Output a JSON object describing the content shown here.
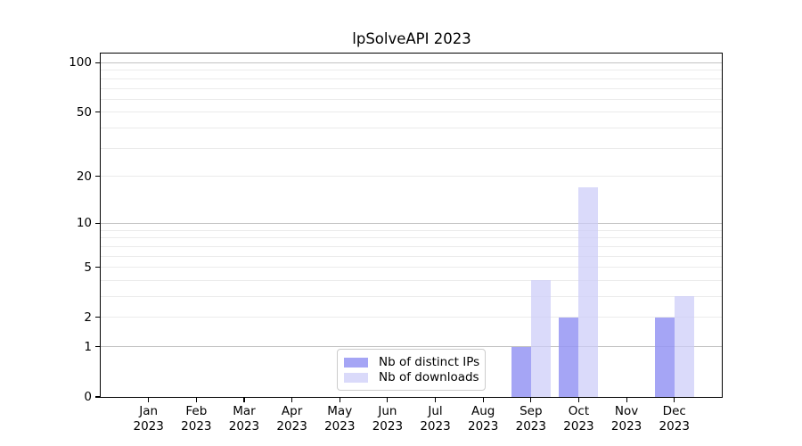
{
  "chart_data": {
    "type": "bar",
    "title": "lpSolveAPI 2023",
    "categories": [
      "Jan",
      "Feb",
      "Mar",
      "Apr",
      "May",
      "Jun",
      "Jul",
      "Aug",
      "Sep",
      "Oct",
      "Nov",
      "Dec"
    ],
    "category_sub_label": "2023",
    "series": [
      {
        "name": "Nb of distinct IPs",
        "color": "#9898f4",
        "alpha": 0.87,
        "values": [
          0,
          0,
          0,
          0,
          0,
          0,
          0,
          0,
          1,
          2,
          0,
          2
        ]
      },
      {
        "name": "Nb of downloads",
        "color": "#ccccf8",
        "alpha": 0.72,
        "values": [
          0,
          0,
          0,
          0,
          0,
          0,
          0,
          0,
          4,
          17,
          0,
          3
        ]
      }
    ],
    "y_axis": {
      "scale": "log1p",
      "tick_labels": [
        0,
        1,
        2,
        5,
        10,
        20,
        50,
        100
      ],
      "dark_gridlines": [
        1,
        10,
        100
      ],
      "light_gridlines": [
        2,
        3,
        4,
        5,
        6,
        7,
        8,
        9,
        20,
        30,
        40,
        50,
        60,
        70,
        80,
        90
      ],
      "range": [
        0,
        114
      ]
    },
    "legend": {
      "position": "bottom-center",
      "entries": [
        "Nb of distinct IPs",
        "Nb of downloads"
      ]
    },
    "colors": {
      "grid_major": "#c3c3c3",
      "grid_minor": "#ebebeb",
      "axis": "#000000",
      "background": "#ffffff"
    }
  }
}
